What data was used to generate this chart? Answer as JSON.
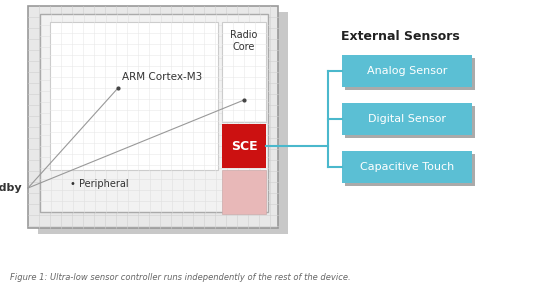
{
  "fig_bg": "#ffffff",
  "title_text": "Figure 1: Ultra-low sensor controller runs independently of the rest of the device.",
  "external_sensors_title": "External Sensors",
  "sensor_labels": [
    "Analog Sensor",
    "Digital Sensor",
    "Capacitive Touch"
  ],
  "sensor_color": "#5bbfd4",
  "sensor_text_color": "#ffffff",
  "sce_color": "#cc1111",
  "sce_faded_color": "#e8b8b8",
  "sce_label": "SCE",
  "arm_label": "ARM Cortex-M3",
  "radio_label": "Radio\nCore",
  "peripheral_label": "• Peripheral",
  "standby_label": "Standby",
  "grid_color": "#d8d8d8",
  "shadow_color": "#c8c8c8",
  "outer_fc": "#e8e8e8",
  "outer_ec": "#999999",
  "inner_fc": "#f2f2f2",
  "inner_ec": "#aaaaaa",
  "arm_box_fc": "#ffffff",
  "arm_box_ec": "#cccccc",
  "radio_box_fc": "#ffffff",
  "radio_box_ec": "#cccccc",
  "connector_color": "#4ab8cc",
  "line_color": "#999999"
}
